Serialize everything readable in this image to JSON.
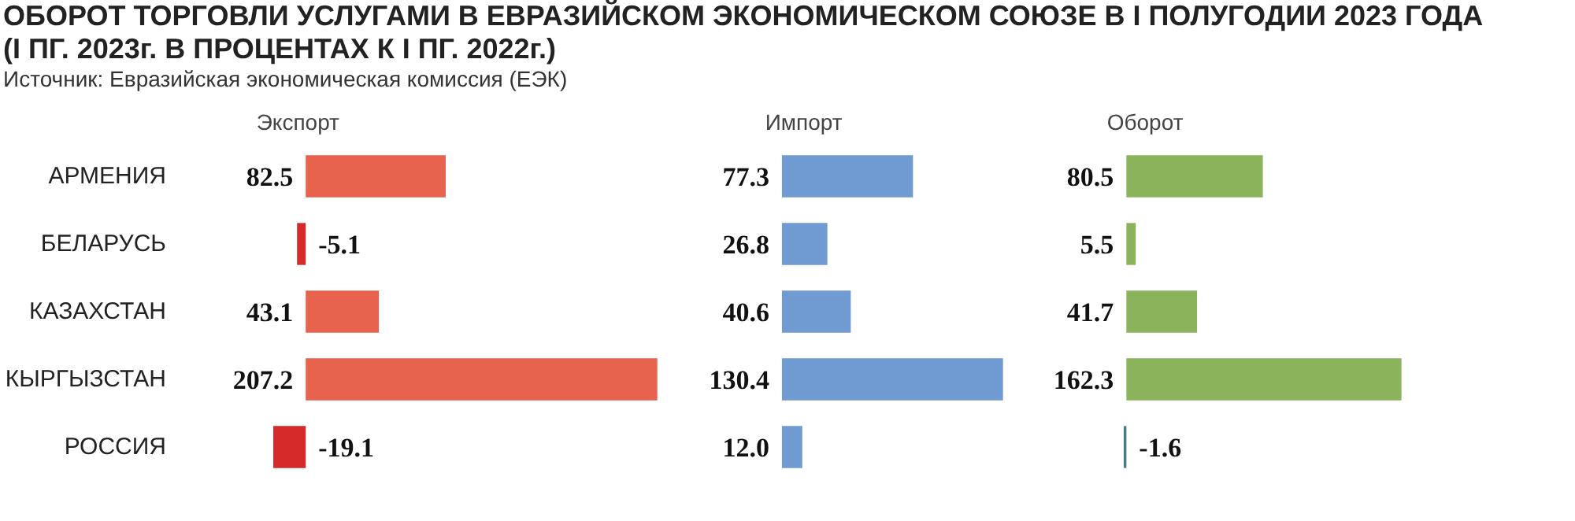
{
  "chart_data": [
    {
      "type": "bar",
      "orientation": "horizontal",
      "title": "ОБОРОТ ТОРГОВЛИ УСЛУГАМИ  В ЕВРАЗИЙСКОМ ЭКОНОМИЧЕСКОМ СОЮЗЕ В I ПОЛУГОДИИ 2023 ГОДА",
      "subtitle": "(I ПГ. 2023г. В ПРОЦЕНТАХ К I ПГ. 2022г.)",
      "annotations": [
        "Источник: Евразийская экономическая комиссия (ЕЭК)"
      ],
      "categories": [
        "АРМЕНИЯ",
        "БЕЛАРУСЬ",
        "КАЗАХСТАН",
        "КЫРГЫЗСТАН",
        "РОССИЯ"
      ],
      "tick_labels": "y",
      "series": [
        {
          "name": "Экспорт",
          "colors": [
            "#e8634e",
            "#d42a2a",
            "#e8634e",
            "#e8634e",
            "#d42a2a"
          ],
          "values": [
            82.5,
            -5.1,
            43.1,
            207.2,
            -19.1
          ],
          "value_labels": [
            "82.5",
            "-5.1",
            "43.1",
            "207.2",
            "-19.1"
          ]
        }
      ]
    },
    {
      "type": "bar",
      "orientation": "horizontal",
      "tick_labels": false,
      "series": [
        {
          "name": "Импорт",
          "colors": [
            "#6f9bd2",
            "#6f9bd2",
            "#6f9bd2",
            "#6f9bd2",
            "#6f9bd2"
          ],
          "values": [
            77.3,
            26.8,
            40.6,
            130.4,
            12.0
          ],
          "value_labels": [
            "77.3",
            "26.8",
            "40.6",
            "130.4",
            "12.0"
          ]
        }
      ]
    },
    {
      "type": "bar",
      "orientation": "horizontal",
      "tick_labels": false,
      "series": [
        {
          "name": "Оборот",
          "colors": [
            "#8bb35c",
            "#8bb35c",
            "#8bb35c",
            "#8bb35c",
            "#4a7a8a"
          ],
          "values": [
            80.5,
            5.5,
            41.7,
            162.3,
            -1.6
          ],
          "value_labels": [
            "80.5",
            "5.5",
            "41.7",
            "162.3",
            "-1.6"
          ]
        }
      ]
    }
  ]
}
